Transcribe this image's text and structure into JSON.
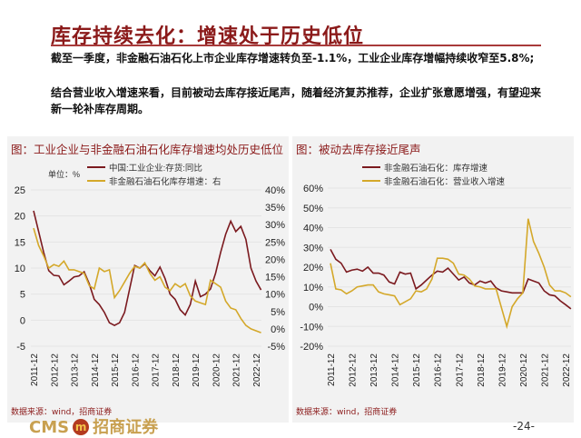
{
  "title": "库存持续去化：增速处于历史低位",
  "paragraphs": [
    "截至一季度，非金融石油石化上市企业库存增速转负至-1.1%，工业企业库存增幅持续收窄至5.8%;",
    "结合营业收入增速来看，目前被动去库存接近尾声，随着经济复苏推荐，企业扩张意愿增强，有望迎来新一轮补库存周期。"
  ],
  "footer": {
    "logo": "CMS 招商证券",
    "page": "-24-"
  },
  "colors": {
    "series1": "#7b1a1f",
    "series2": "#d4a82a",
    "title": "#8b1a1a"
  },
  "chart_data": [
    {
      "type": "line",
      "title": "图：工业企业与非金融石油石化库存增速均处历史低位",
      "unit": "单位：%",
      "source": "数据来源：wind，招商证券",
      "ylim": [
        -5,
        25
      ],
      "yticks": [
        -5,
        0,
        5,
        10,
        15,
        20,
        25
      ],
      "y2lim": [
        -0.05,
        0.4
      ],
      "y2ticks": [
        "-5%",
        "0%",
        "5%",
        "10%",
        "15%",
        "20%",
        "25%",
        "30%",
        "35%",
        "40%"
      ],
      "xticks": [
        "2011-12",
        "2012-12",
        "2013-12",
        "2014-12",
        "2015-12",
        "2016-12",
        "2017-12",
        "2018-12",
        "2019-12",
        "2020-12",
        "2021-12",
        "2022-12"
      ],
      "series": [
        {
          "name": "中国:工业企业:存货:同比",
          "axis": "left",
          "points": [
            [
              "2011-12",
              21
            ],
            [
              "2012-03",
              17
            ],
            [
              "2012-06",
              13
            ],
            [
              "2012-09",
              9.5
            ],
            [
              "2012-12",
              8.6
            ],
            [
              "2013-03",
              8.5
            ],
            [
              "2013-06",
              6.8
            ],
            [
              "2013-09",
              7.5
            ],
            [
              "2013-12",
              8.3
            ],
            [
              "2014-03",
              8.5
            ],
            [
              "2014-06",
              9.3
            ],
            [
              "2014-09",
              7
            ],
            [
              "2014-12",
              4
            ],
            [
              "2015-03",
              3
            ],
            [
              "2015-06",
              1.5
            ],
            [
              "2015-09",
              -0.5
            ],
            [
              "2015-12",
              -1
            ],
            [
              "2016-03",
              -0.5
            ],
            [
              "2016-06",
              1.5
            ],
            [
              "2016-09",
              6
            ],
            [
              "2016-12",
              10.5
            ],
            [
              "2017-03",
              10
            ],
            [
              "2017-06",
              10.8
            ],
            [
              "2017-09",
              9.5
            ],
            [
              "2017-12",
              8.5
            ],
            [
              "2018-03",
              10.2
            ],
            [
              "2018-06",
              8
            ],
            [
              "2018-09",
              5
            ],
            [
              "2018-12",
              4
            ],
            [
              "2019-03",
              2
            ],
            [
              "2019-06",
              1
            ],
            [
              "2019-09",
              3
            ],
            [
              "2019-12",
              7.5
            ],
            [
              "2020-03",
              4.5
            ],
            [
              "2020-06",
              5
            ],
            [
              "2020-09",
              6
            ],
            [
              "2020-12",
              9
            ],
            [
              "2021-03",
              13
            ],
            [
              "2021-06",
              16.5
            ],
            [
              "2021-09",
              19
            ],
            [
              "2021-12",
              17
            ],
            [
              "2022-03",
              18
            ],
            [
              "2022-06",
              15.5
            ],
            [
              "2022-09",
              10
            ],
            [
              "2022-12",
              7.5
            ],
            [
              "2023-03",
              5.8
            ]
          ]
        },
        {
          "name": "非金融石油石化库存增速：右",
          "axis": "right",
          "points": [
            [
              "2011-12",
              29
            ],
            [
              "2012-03",
              24
            ],
            [
              "2012-06",
              21
            ],
            [
              "2012-09",
              17.5
            ],
            [
              "2012-12",
              18.5
            ],
            [
              "2013-03",
              18
            ],
            [
              "2013-06",
              19.5
            ],
            [
              "2013-09",
              17
            ],
            [
              "2013-12",
              17
            ],
            [
              "2014-03",
              16.5
            ],
            [
              "2014-06",
              16
            ],
            [
              "2014-09",
              12.5
            ],
            [
              "2014-12",
              11.5
            ],
            [
              "2015-03",
              17.5
            ],
            [
              "2015-06",
              16.5
            ],
            [
              "2015-09",
              17
            ],
            [
              "2015-12",
              9
            ],
            [
              "2016-03",
              11
            ],
            [
              "2016-06",
              13.5
            ],
            [
              "2016-09",
              16
            ],
            [
              "2016-12",
              18
            ],
            [
              "2017-03",
              17.5
            ],
            [
              "2017-06",
              19
            ],
            [
              "2017-09",
              16
            ],
            [
              "2017-12",
              14
            ],
            [
              "2018-03",
              15
            ],
            [
              "2018-06",
              12
            ],
            [
              "2018-09",
              11
            ],
            [
              "2018-12",
              13
            ],
            [
              "2019-03",
              12
            ],
            [
              "2019-06",
              13
            ],
            [
              "2019-09",
              9.5
            ],
            [
              "2019-12",
              8
            ],
            [
              "2020-03",
              7.5
            ],
            [
              "2020-06",
              7
            ],
            [
              "2020-09",
              14
            ],
            [
              "2020-12",
              13
            ],
            [
              "2021-03",
              12
            ],
            [
              "2021-06",
              8
            ],
            [
              "2021-09",
              6
            ],
            [
              "2021-12",
              5.5
            ],
            [
              "2022-03",
              3
            ],
            [
              "2022-06",
              1
            ],
            [
              "2022-09",
              0
            ],
            [
              "2023-03",
              -1.1
            ]
          ]
        }
      ]
    },
    {
      "type": "line",
      "title": "图：被动去库存接近尾声",
      "source": "数据来源：wind，招商证券",
      "ylim": [
        -20,
        60
      ],
      "yticks": [
        "-20%",
        "-10%",
        "0%",
        "10%",
        "20%",
        "30%",
        "40%",
        "50%",
        "60%"
      ],
      "xticks": [
        "2011-12",
        "2012-12",
        "2013-12",
        "2014-12",
        "2015-12",
        "2016-12",
        "2017-12",
        "2018-12",
        "2019-12",
        "2020-12",
        "2021-12",
        "2022-12"
      ],
      "series": [
        {
          "name": "非金融石油石化：库存增速",
          "points": [
            [
              "2011-12",
              29
            ],
            [
              "2012-03",
              24
            ],
            [
              "2012-06",
              22
            ],
            [
              "2012-09",
              17.5
            ],
            [
              "2012-12",
              18.5
            ],
            [
              "2013-03",
              19
            ],
            [
              "2013-06",
              18
            ],
            [
              "2013-09",
              20
            ],
            [
              "2013-12",
              17
            ],
            [
              "2014-03",
              17
            ],
            [
              "2014-06",
              16
            ],
            [
              "2014-09",
              12.5
            ],
            [
              "2014-12",
              11.5
            ],
            [
              "2015-03",
              17.5
            ],
            [
              "2015-06",
              16.5
            ],
            [
              "2015-09",
              17
            ],
            [
              "2015-12",
              9
            ],
            [
              "2016-03",
              11
            ],
            [
              "2016-06",
              13.5
            ],
            [
              "2016-09",
              16
            ],
            [
              "2016-12",
              18
            ],
            [
              "2017-03",
              17.5
            ],
            [
              "2017-06",
              19.5
            ],
            [
              "2017-09",
              16.5
            ],
            [
              "2017-12",
              13.5
            ],
            [
              "2018-03",
              15
            ],
            [
              "2018-06",
              12
            ],
            [
              "2018-09",
              11
            ],
            [
              "2018-12",
              13
            ],
            [
              "2019-03",
              12
            ],
            [
              "2019-06",
              13
            ],
            [
              "2019-09",
              9.5
            ],
            [
              "2019-12",
              8
            ],
            [
              "2020-03",
              7.5
            ],
            [
              "2020-06",
              7
            ],
            [
              "2020-09",
              7
            ],
            [
              "2020-12",
              7
            ],
            [
              "2021-03",
              14
            ],
            [
              "2021-06",
              13
            ],
            [
              "2021-09",
              12
            ],
            [
              "2021-12",
              8
            ],
            [
              "2022-03",
              6
            ],
            [
              "2022-06",
              5.5
            ],
            [
              "2022-09",
              3
            ],
            [
              "2022-12",
              1
            ],
            [
              "2023-03",
              -1.1
            ]
          ]
        },
        {
          "name": "非金融石油石化：营业收入增速",
          "points": [
            [
              "2011-12",
              22
            ],
            [
              "2012-03",
              9
            ],
            [
              "2012-06",
              8.5
            ],
            [
              "2012-09",
              6.5
            ],
            [
              "2012-12",
              8
            ],
            [
              "2013-03",
              10
            ],
            [
              "2013-06",
              10.5
            ],
            [
              "2013-09",
              11
            ],
            [
              "2013-12",
              11
            ],
            [
              "2014-03",
              7.5
            ],
            [
              "2014-06",
              6.5
            ],
            [
              "2014-09",
              6
            ],
            [
              "2014-12",
              5.5
            ],
            [
              "2015-03",
              1
            ],
            [
              "2015-06",
              2.5
            ],
            [
              "2015-09",
              4
            ],
            [
              "2015-12",
              8
            ],
            [
              "2016-03",
              7.5
            ],
            [
              "2016-06",
              9
            ],
            [
              "2016-09",
              14
            ],
            [
              "2016-12",
              24.5
            ],
            [
              "2017-03",
              24.5
            ],
            [
              "2017-06",
              24
            ],
            [
              "2017-09",
              22
            ],
            [
              "2017-12",
              16.5
            ],
            [
              "2018-03",
              16
            ],
            [
              "2018-06",
              14
            ],
            [
              "2018-09",
              10.5
            ],
            [
              "2018-12",
              10
            ],
            [
              "2019-03",
              9
            ],
            [
              "2019-06",
              9
            ],
            [
              "2019-09",
              9
            ],
            [
              "2020-03",
              -10
            ],
            [
              "2020-06",
              0
            ],
            [
              "2020-09",
              4
            ],
            [
              "2020-12",
              7
            ],
            [
              "2021-03",
              44.5
            ],
            [
              "2021-06",
              33
            ],
            [
              "2021-09",
              27
            ],
            [
              "2021-12",
              20
            ],
            [
              "2022-03",
              11
            ],
            [
              "2022-06",
              8
            ],
            [
              "2022-09",
              8
            ],
            [
              "2022-12",
              7
            ],
            [
              "2023-03",
              5
            ]
          ]
        }
      ]
    }
  ]
}
